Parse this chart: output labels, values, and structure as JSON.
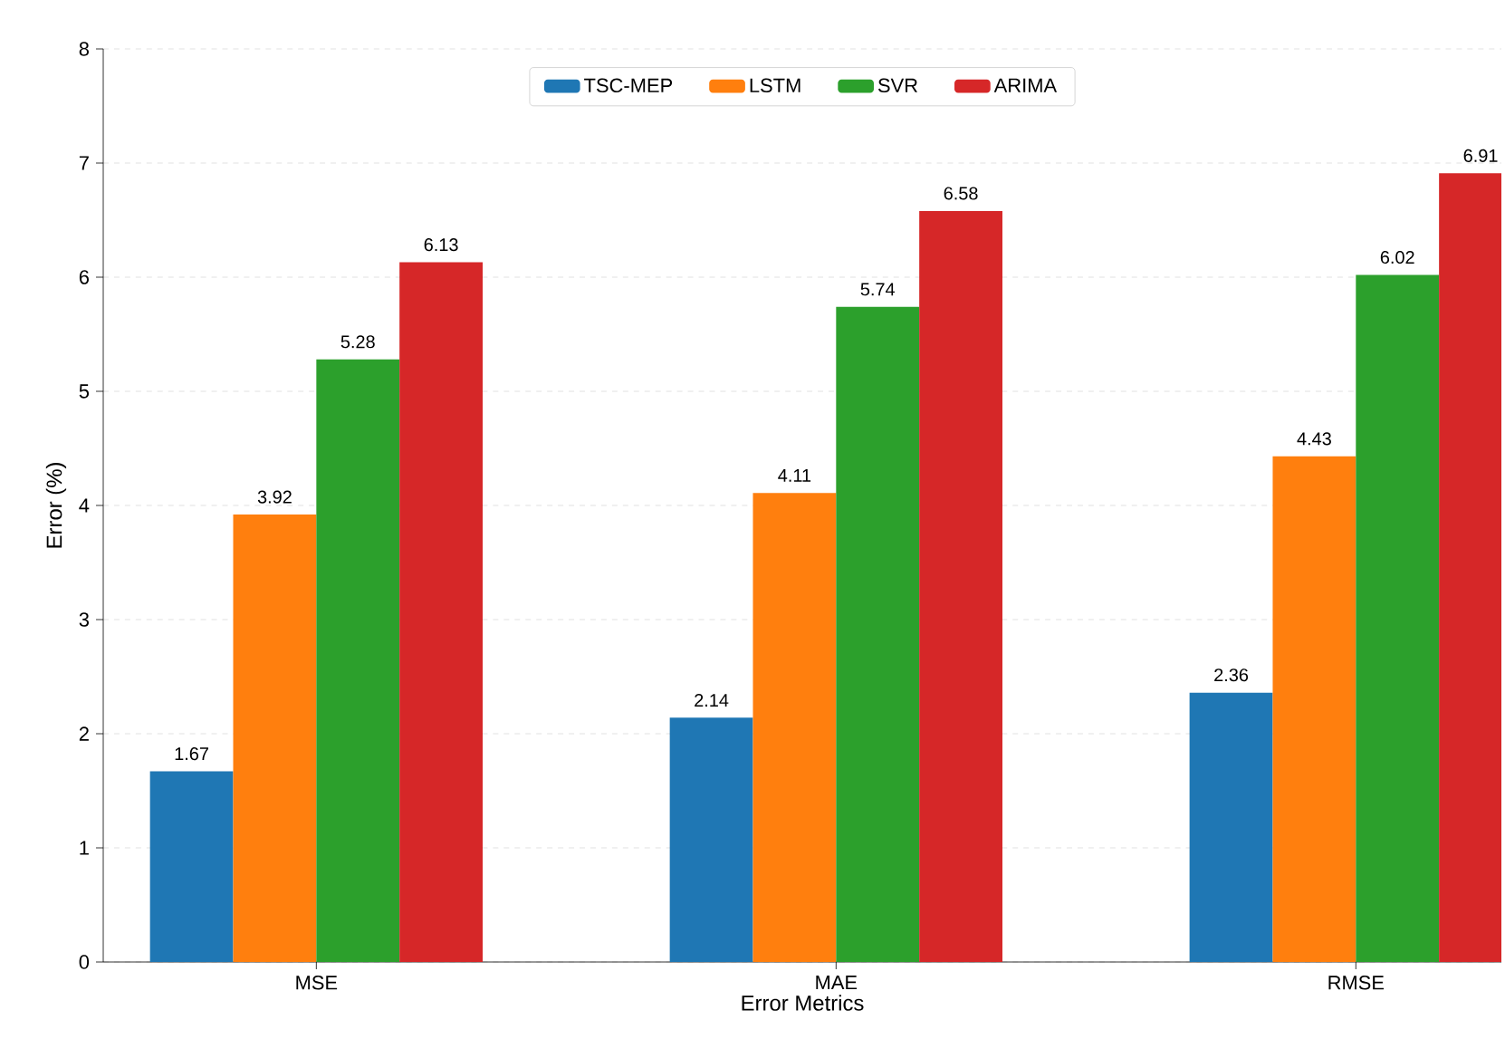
{
  "chart_data": {
    "type": "bar",
    "xlabel": "Error Metrics",
    "ylabel": "Error (%)",
    "categories": [
      "MSE",
      "MAE",
      "RMSE"
    ],
    "series": [
      {
        "name": "TSC-MEP",
        "color": "#1f77b4",
        "values": [
          1.67,
          2.14,
          2.36
        ]
      },
      {
        "name": "LSTM",
        "color": "#ff7f0e",
        "values": [
          3.92,
          4.11,
          4.43
        ]
      },
      {
        "name": "SVR",
        "color": "#2ca02c",
        "values": [
          5.28,
          5.74,
          6.02
        ]
      },
      {
        "name": "ARIMA",
        "color": "#d62728",
        "values": [
          6.13,
          6.58,
          6.91
        ]
      }
    ],
    "ylim": [
      0,
      8
    ],
    "yticks": [
      0,
      1,
      2,
      3,
      4,
      5,
      6,
      7,
      8
    ],
    "grid": "y",
    "legend": "top",
    "data_labels": true
  }
}
